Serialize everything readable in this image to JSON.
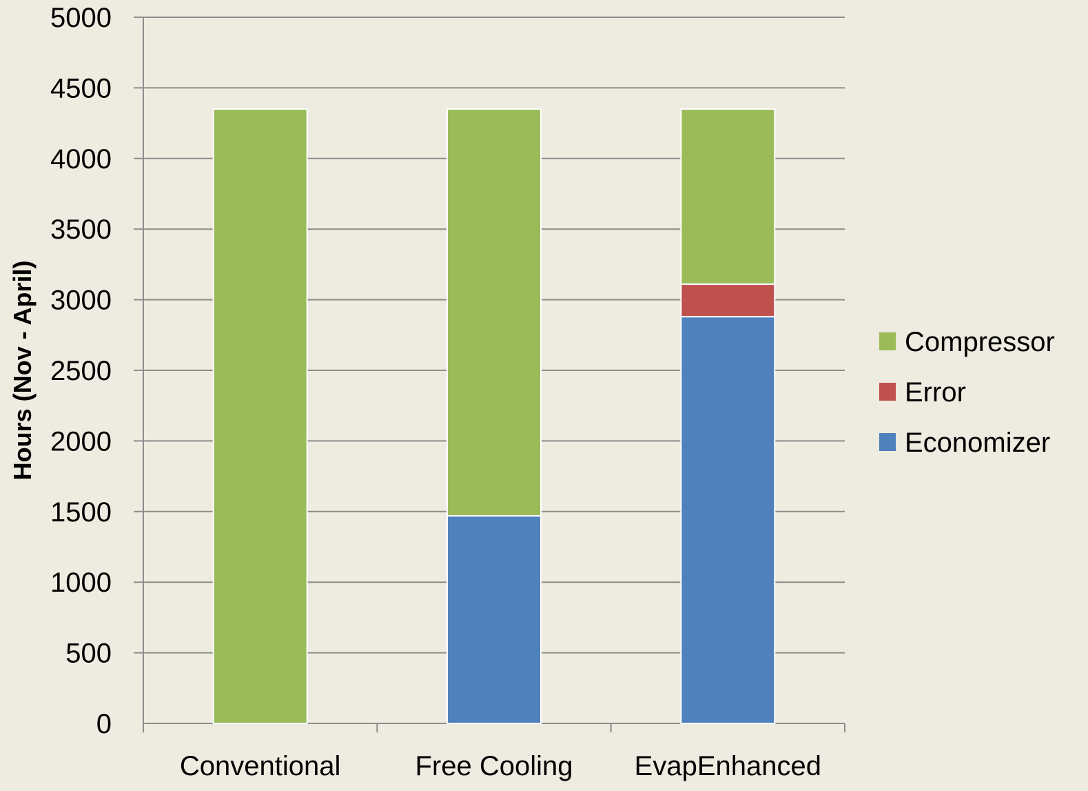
{
  "chart_data": {
    "type": "bar",
    "stacked": true,
    "categories": [
      "Conventional",
      "Free Cooling",
      "EvapEnhanced"
    ],
    "series": [
      {
        "name": "Economizer",
        "color": "#4F81BD",
        "values": [
          0,
          1470,
          2880
        ]
      },
      {
        "name": "Error",
        "color": "#C0504D",
        "values": [
          0,
          0,
          230
        ]
      },
      {
        "name": "Compressor",
        "color": "#9BBB59",
        "values": [
          4350,
          2880,
          1240
        ]
      }
    ],
    "title": "",
    "xlabel": "",
    "ylabel": "Hours (Nov - April)",
    "ylim": [
      0,
      5000
    ],
    "yticks": [
      0,
      500,
      1000,
      1500,
      2000,
      2500,
      3000,
      3500,
      4000,
      4500,
      5000
    ],
    "grid": true,
    "legend": {
      "position": "right",
      "order": [
        "Compressor",
        "Error",
        "Economizer"
      ]
    }
  },
  "colors": {
    "background": "#EEEBE0",
    "gridline": "#8C8C8C",
    "axis": "#8C8C8C",
    "bar_border": "#FFFFFF"
  }
}
